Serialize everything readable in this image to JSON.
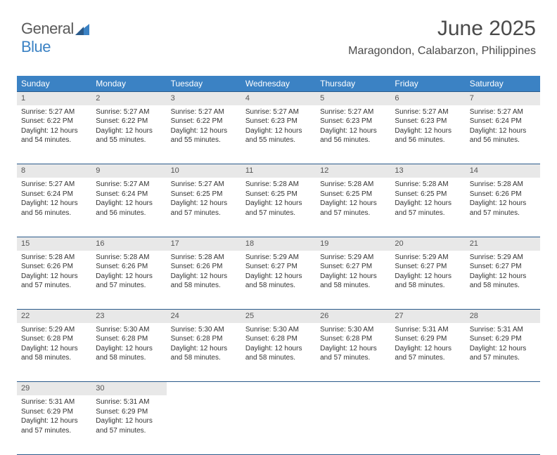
{
  "logo": {
    "text1": "General",
    "text2": "Blue"
  },
  "title": "June 2025",
  "location": "Maragondon, Calabarzon, Philippines",
  "colors": {
    "header_bg": "#3b82c4",
    "header_fg": "#ffffff",
    "daynum_bg": "#e8e8e8",
    "border": "#2a5a8a",
    "text": "#333333",
    "title_color": "#4a4a4a"
  },
  "weekday_labels": [
    "Sunday",
    "Monday",
    "Tuesday",
    "Wednesday",
    "Thursday",
    "Friday",
    "Saturday"
  ],
  "days": [
    {
      "n": 1,
      "sunrise": "5:27 AM",
      "sunset": "6:22 PM",
      "dl": "12 hours and 54 minutes."
    },
    {
      "n": 2,
      "sunrise": "5:27 AM",
      "sunset": "6:22 PM",
      "dl": "12 hours and 55 minutes."
    },
    {
      "n": 3,
      "sunrise": "5:27 AM",
      "sunset": "6:22 PM",
      "dl": "12 hours and 55 minutes."
    },
    {
      "n": 4,
      "sunrise": "5:27 AM",
      "sunset": "6:23 PM",
      "dl": "12 hours and 55 minutes."
    },
    {
      "n": 5,
      "sunrise": "5:27 AM",
      "sunset": "6:23 PM",
      "dl": "12 hours and 56 minutes."
    },
    {
      "n": 6,
      "sunrise": "5:27 AM",
      "sunset": "6:23 PM",
      "dl": "12 hours and 56 minutes."
    },
    {
      "n": 7,
      "sunrise": "5:27 AM",
      "sunset": "6:24 PM",
      "dl": "12 hours and 56 minutes."
    },
    {
      "n": 8,
      "sunrise": "5:27 AM",
      "sunset": "6:24 PM",
      "dl": "12 hours and 56 minutes."
    },
    {
      "n": 9,
      "sunrise": "5:27 AM",
      "sunset": "6:24 PM",
      "dl": "12 hours and 56 minutes."
    },
    {
      "n": 10,
      "sunrise": "5:27 AM",
      "sunset": "6:25 PM",
      "dl": "12 hours and 57 minutes."
    },
    {
      "n": 11,
      "sunrise": "5:28 AM",
      "sunset": "6:25 PM",
      "dl": "12 hours and 57 minutes."
    },
    {
      "n": 12,
      "sunrise": "5:28 AM",
      "sunset": "6:25 PM",
      "dl": "12 hours and 57 minutes."
    },
    {
      "n": 13,
      "sunrise": "5:28 AM",
      "sunset": "6:25 PM",
      "dl": "12 hours and 57 minutes."
    },
    {
      "n": 14,
      "sunrise": "5:28 AM",
      "sunset": "6:26 PM",
      "dl": "12 hours and 57 minutes."
    },
    {
      "n": 15,
      "sunrise": "5:28 AM",
      "sunset": "6:26 PM",
      "dl": "12 hours and 57 minutes."
    },
    {
      "n": 16,
      "sunrise": "5:28 AM",
      "sunset": "6:26 PM",
      "dl": "12 hours and 57 minutes."
    },
    {
      "n": 17,
      "sunrise": "5:28 AM",
      "sunset": "6:26 PM",
      "dl": "12 hours and 58 minutes."
    },
    {
      "n": 18,
      "sunrise": "5:29 AM",
      "sunset": "6:27 PM",
      "dl": "12 hours and 58 minutes."
    },
    {
      "n": 19,
      "sunrise": "5:29 AM",
      "sunset": "6:27 PM",
      "dl": "12 hours and 58 minutes."
    },
    {
      "n": 20,
      "sunrise": "5:29 AM",
      "sunset": "6:27 PM",
      "dl": "12 hours and 58 minutes."
    },
    {
      "n": 21,
      "sunrise": "5:29 AM",
      "sunset": "6:27 PM",
      "dl": "12 hours and 58 minutes."
    },
    {
      "n": 22,
      "sunrise": "5:29 AM",
      "sunset": "6:28 PM",
      "dl": "12 hours and 58 minutes."
    },
    {
      "n": 23,
      "sunrise": "5:30 AM",
      "sunset": "6:28 PM",
      "dl": "12 hours and 58 minutes."
    },
    {
      "n": 24,
      "sunrise": "5:30 AM",
      "sunset": "6:28 PM",
      "dl": "12 hours and 58 minutes."
    },
    {
      "n": 25,
      "sunrise": "5:30 AM",
      "sunset": "6:28 PM",
      "dl": "12 hours and 58 minutes."
    },
    {
      "n": 26,
      "sunrise": "5:30 AM",
      "sunset": "6:28 PM",
      "dl": "12 hours and 57 minutes."
    },
    {
      "n": 27,
      "sunrise": "5:31 AM",
      "sunset": "6:29 PM",
      "dl": "12 hours and 57 minutes."
    },
    {
      "n": 28,
      "sunrise": "5:31 AM",
      "sunset": "6:29 PM",
      "dl": "12 hours and 57 minutes."
    },
    {
      "n": 29,
      "sunrise": "5:31 AM",
      "sunset": "6:29 PM",
      "dl": "12 hours and 57 minutes."
    },
    {
      "n": 30,
      "sunrise": "5:31 AM",
      "sunset": "6:29 PM",
      "dl": "12 hours and 57 minutes."
    }
  ],
  "labels": {
    "sunrise": "Sunrise:",
    "sunset": "Sunset:",
    "daylight": "Daylight:"
  },
  "layout": {
    "first_weekday": 0,
    "weeks": 5,
    "cols": 7
  }
}
